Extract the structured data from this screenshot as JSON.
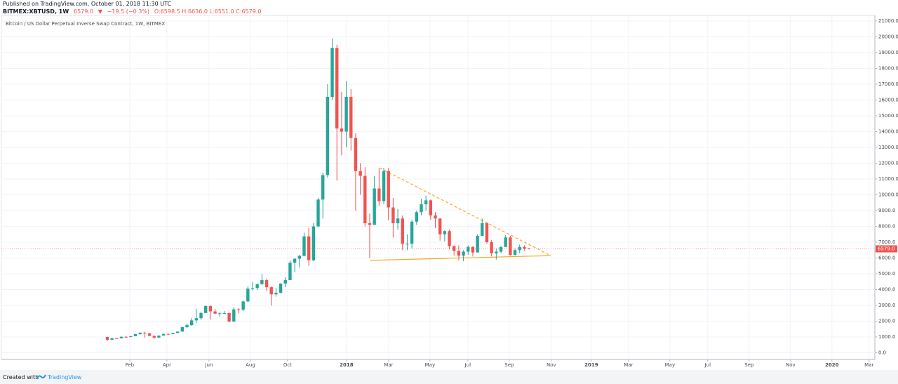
{
  "header": {
    "published": "Published on TradingView.com, October 01, 2018 11:30 UTC",
    "symbol": "BITMEX:XBTUSD, 1W",
    "last": "6579.0",
    "arrow": "▼",
    "change": "−19.5 (−0.3%)",
    "ohlc": "O:6598.5 H:6636.0 L:6551.0 C:6579.0"
  },
  "footer": {
    "created": "Created with",
    "brand": "TradingView"
  },
  "chart_data": {
    "type": "candlestick",
    "title": "Bitcoin / US Dollar Perpetual Inverse Swap Contract, 1W, BITMEX",
    "up_color": "#26a69a",
    "down_color": "#ef5350",
    "grid": true,
    "open": [
      1000,
      820,
      920,
      915,
      1010,
      1000,
      1050,
      1180,
      1270,
      1230,
      1070,
      960,
      1090,
      1190,
      1180,
      1250,
      1340,
      1620,
      1750,
      2050,
      2190,
      2520,
      2960,
      2620,
      2480,
      2500,
      2510,
      1970,
      2750,
      2720,
      3250,
      4060,
      4100,
      4340,
      4600,
      4150,
      3700,
      3800,
      4380,
      4600,
      5700,
      5950,
      6130,
      7370,
      5860,
      8000,
      9700,
      11250,
      16200,
      19300,
      14200,
      14000,
      16200,
      13600,
      11500,
      11200,
      8200,
      8100,
      10400,
      9600,
      11500,
      9200,
      8200,
      8500,
      6900,
      6900,
      8300,
      8900,
      9400,
      9650,
      8700,
      8500,
      7500,
      7700,
      6750,
      6450,
      6150,
      6400,
      6700,
      6350,
      7400,
      8200,
      7000,
      6300,
      6400,
      6700,
      7300,
      6200,
      6500,
      6700,
      6598.5
    ],
    "high": [
      1010,
      930,
      930,
      1040,
      1070,
      1060,
      1200,
      1290,
      1330,
      1250,
      1080,
      1100,
      1210,
      1220,
      1260,
      1350,
      1640,
      1850,
      2200,
      2780,
      2600,
      2990,
      2990,
      2780,
      2580,
      2650,
      2560,
      2900,
      2820,
      3300,
      4200,
      4480,
      4400,
      4980,
      4700,
      4200,
      4100,
      4400,
      4780,
      5850,
      6000,
      6200,
      7600,
      7900,
      8200,
      9800,
      11400,
      17000,
      19900,
      19500,
      16500,
      17200,
      16700,
      13900,
      12000,
      11750,
      8800,
      11200,
      11700,
      11700,
      11700,
      9800,
      9100,
      8700,
      7500,
      8400,
      9000,
      9750,
      9950,
      9700,
      8900,
      8500,
      7750,
      7800,
      6800,
      6800,
      6500,
      6800,
      6750,
      7500,
      8500,
      8250,
      7150,
      6600,
      6750,
      7450,
      7400,
      6600,
      6850,
      6800,
      6636
    ],
    "low": [
      750,
      820,
      880,
      910,
      940,
      980,
      1050,
      1150,
      950,
      1060,
      890,
      960,
      1080,
      1150,
      1170,
      1240,
      1340,
      1560,
      1700,
      1900,
      2080,
      2500,
      2100,
      2450,
      2300,
      2480,
      1930,
      1950,
      2500,
      2650,
      3200,
      3950,
      3980,
      4300,
      3900,
      2980,
      3550,
      3750,
      4150,
      4600,
      5100,
      5400,
      6100,
      5500,
      5800,
      7950,
      8500,
      11100,
      16000,
      10900,
      12500,
      13000,
      12800,
      9000,
      10000,
      8000,
      6000,
      8100,
      9300,
      9400,
      8400,
      7300,
      7800,
      6500,
      6500,
      6600,
      8100,
      8700,
      9000,
      8400,
      7900,
      7100,
      7050,
      6550,
      6150,
      5850,
      5800,
      6200,
      6100,
      6350,
      7400,
      6900,
      6100,
      5900,
      6300,
      6700,
      6150,
      6150,
      6300,
      6450,
      6551
    ],
    "close": [
      820,
      920,
      915,
      1010,
      1000,
      1050,
      1180,
      1270,
      1230,
      1070,
      960,
      1090,
      1190,
      1180,
      1250,
      1340,
      1620,
      1750,
      2050,
      2190,
      2520,
      2960,
      2620,
      2480,
      2500,
      2510,
      1970,
      2750,
      2720,
      3250,
      4060,
      4100,
      4340,
      4600,
      4150,
      3700,
      3800,
      4380,
      4600,
      5700,
      5950,
      6130,
      7370,
      5860,
      8000,
      9700,
      11250,
      16200,
      19300,
      14200,
      14000,
      16200,
      13600,
      11500,
      11200,
      8200,
      8100,
      10400,
      9600,
      11500,
      9200,
      8200,
      8500,
      6900,
      6900,
      8300,
      8900,
      9400,
      9650,
      8700,
      8500,
      7500,
      7700,
      6750,
      6450,
      6150,
      6400,
      6700,
      6350,
      7400,
      8200,
      7000,
      6300,
      6400,
      6700,
      7300,
      6200,
      6500,
      6700,
      6600,
      6579
    ],
    "ylim": [
      -422,
      21356
    ],
    "yticks": [
      {
        "value": 0,
        "label": "0.0"
      },
      {
        "value": 1000,
        "label": "1000.0"
      },
      {
        "value": 2000,
        "label": "2000.0"
      },
      {
        "value": 3000,
        "label": "3000.0"
      },
      {
        "value": 4000,
        "label": "4000.0"
      },
      {
        "value": 5000,
        "label": "5000.0"
      },
      {
        "value": 6000,
        "label": "6000.0"
      },
      {
        "value": 7000,
        "label": "7000.0"
      },
      {
        "value": 8000,
        "label": "8000.0"
      },
      {
        "value": 9000,
        "label": "9000.0"
      },
      {
        "value": 10000,
        "label": "10000.0"
      },
      {
        "value": 11000,
        "label": "11000.0"
      },
      {
        "value": 12000,
        "label": "12000.0"
      },
      {
        "value": 13000,
        "label": "13000.0"
      },
      {
        "value": 14000,
        "label": "14000.0"
      },
      {
        "value": 15000,
        "label": "15000.0"
      },
      {
        "value": 16000,
        "label": "16000.0"
      },
      {
        "value": 17000,
        "label": "17000.0"
      },
      {
        "value": 18000,
        "label": "18000.0"
      },
      {
        "value": 19000,
        "label": "19000.0"
      },
      {
        "value": 20000,
        "label": "20000.0"
      },
      {
        "value": 21000,
        "label": "21000.0"
      }
    ],
    "xlim": [
      -22.6,
      163.8
    ],
    "xticks": [
      {
        "value": 4.79,
        "label": "Feb"
      },
      {
        "value": 12.72,
        "label": "Apr"
      },
      {
        "value": 21.71,
        "label": "Jun"
      },
      {
        "value": 30.54,
        "label": "Aug"
      },
      {
        "value": 38.47,
        "label": "Oct"
      },
      {
        "value": 51.05,
        "label": "2018"
      },
      {
        "value": 60.03,
        "label": "Mar"
      },
      {
        "value": 68.86,
        "label": "May"
      },
      {
        "value": 76.95,
        "label": "Jul"
      },
      {
        "value": 85.78,
        "label": "Sep"
      },
      {
        "value": 94.76,
        "label": "Nov"
      },
      {
        "value": 103.29,
        "label": "2019"
      },
      {
        "value": 111.23,
        "label": "Mar"
      },
      {
        "value": 120.06,
        "label": "May"
      },
      {
        "value": 128.14,
        "label": "Jul"
      },
      {
        "value": 136.98,
        "label": "Sep"
      },
      {
        "value": 145.81,
        "label": "Nov"
      },
      {
        "value": 154.64,
        "label": "2020"
      },
      {
        "value": 162.57,
        "label": "Mar"
      }
    ],
    "last_price": {
      "value": 6579,
      "label": "6579.0"
    },
    "trend_lines": [
      {
        "style": "dashed",
        "color": "#f9a825",
        "x": [
          58.2,
          94.6
        ],
        "y": [
          11700,
          6150
        ]
      },
      {
        "style": "solid",
        "color": "#f9a825",
        "x": [
          56.1,
          94.6
        ],
        "y": [
          5850,
          6150
        ]
      }
    ]
  }
}
